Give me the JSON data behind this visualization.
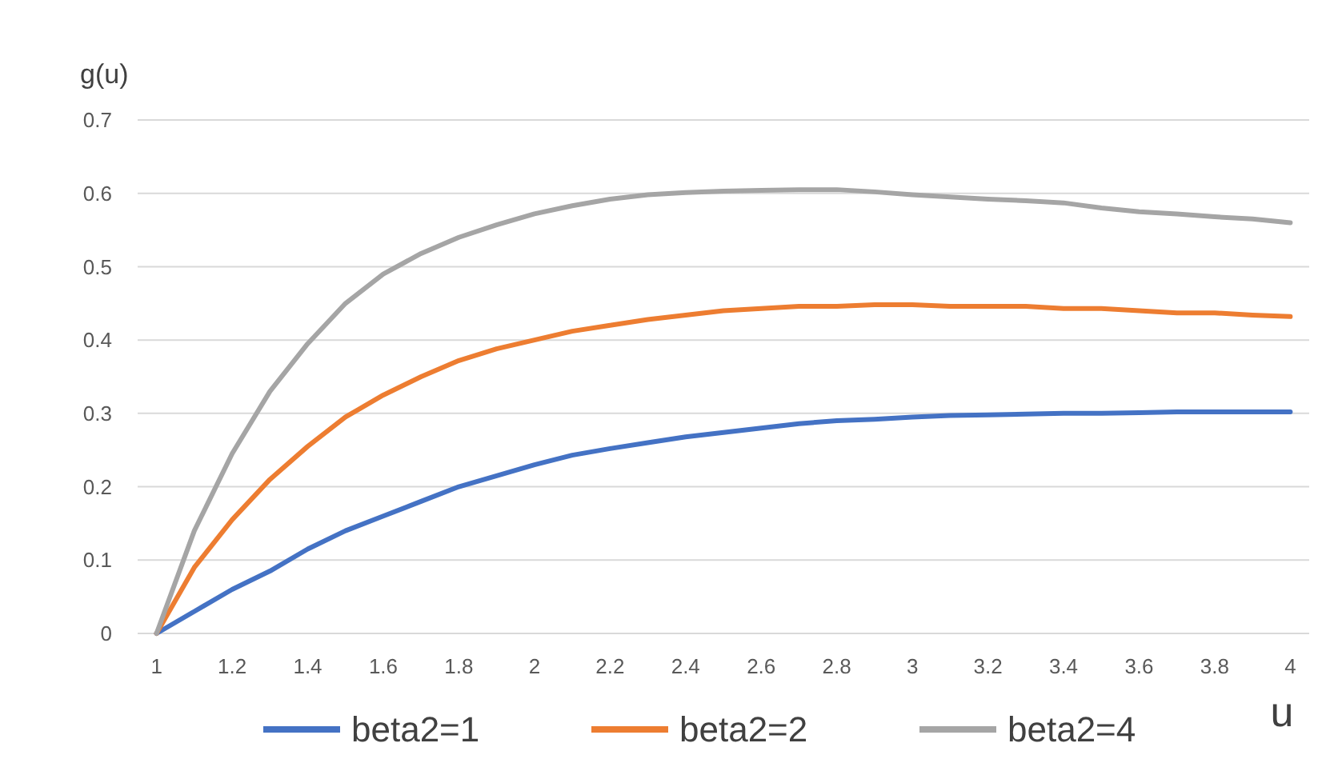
{
  "chart_data": {
    "type": "line",
    "xlabel": "u",
    "ylabel": "g(u)",
    "x": [
      1,
      1.1,
      1.2,
      1.3,
      1.4,
      1.5,
      1.6,
      1.7,
      1.8,
      1.9,
      2,
      2.1,
      2.2,
      2.3,
      2.4,
      2.5,
      2.6,
      2.7,
      2.8,
      2.9,
      3,
      3.1,
      3.2,
      3.3,
      3.4,
      3.5,
      3.6,
      3.7,
      3.8,
      3.9,
      4
    ],
    "series": [
      {
        "name": "beta2=1",
        "color": "#4472c4",
        "values": [
          0,
          0.03,
          0.06,
          0.085,
          0.115,
          0.14,
          0.16,
          0.18,
          0.2,
          0.215,
          0.23,
          0.243,
          0.252,
          0.26,
          0.268,
          0.274,
          0.28,
          0.286,
          0.29,
          0.292,
          0.295,
          0.297,
          0.298,
          0.299,
          0.3,
          0.3,
          0.301,
          0.302,
          0.302,
          0.302,
          0.302
        ]
      },
      {
        "name": "beta2=2",
        "color": "#ed7d31",
        "values": [
          0,
          0.09,
          0.155,
          0.21,
          0.255,
          0.295,
          0.325,
          0.35,
          0.372,
          0.388,
          0.4,
          0.412,
          0.42,
          0.428,
          0.434,
          0.44,
          0.443,
          0.446,
          0.446,
          0.448,
          0.448,
          0.446,
          0.446,
          0.446,
          0.443,
          0.443,
          0.44,
          0.437,
          0.437,
          0.434,
          0.432
        ]
      },
      {
        "name": "beta2=4",
        "color": "#a5a5a5",
        "values": [
          0,
          0.14,
          0.245,
          0.33,
          0.395,
          0.45,
          0.49,
          0.518,
          0.54,
          0.557,
          0.572,
          0.583,
          0.592,
          0.598,
          0.601,
          0.603,
          0.604,
          0.605,
          0.605,
          0.602,
          0.598,
          0.595,
          0.592,
          0.59,
          0.587,
          0.58,
          0.575,
          0.572,
          0.568,
          0.565,
          0.56
        ]
      }
    ],
    "xlim": [
      0.95,
      4.05
    ],
    "xticks": [
      1,
      1.2,
      1.4,
      1.6,
      1.8,
      2,
      2.2,
      2.4,
      2.6,
      2.8,
      3,
      3.2,
      3.4,
      3.6,
      3.8,
      4
    ],
    "ylim": [
      0,
      0.7
    ],
    "yticks": [
      0,
      0.1,
      0.2,
      0.3,
      0.4,
      0.5,
      0.6,
      0.7
    ],
    "grid": "y",
    "legend": "bottom",
    "marker": "none",
    "line_style": "solid"
  }
}
